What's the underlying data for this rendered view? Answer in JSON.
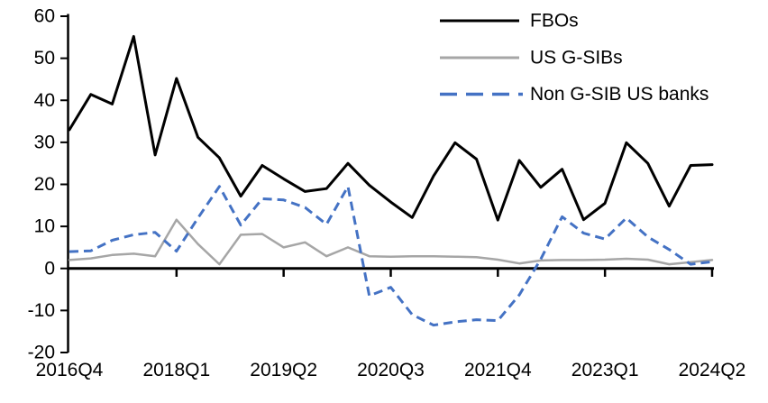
{
  "chart_data": {
    "type": "line",
    "title": "",
    "xlabel": "",
    "ylabel": "",
    "categories": [
      "2016Q4",
      "2017Q1",
      "2017Q2",
      "2017Q3",
      "2017Q4",
      "2018Q1",
      "2018Q2",
      "2018Q3",
      "2018Q4",
      "2019Q1",
      "2019Q2",
      "2019Q3",
      "2019Q4",
      "2020Q1",
      "2020Q2",
      "2020Q3",
      "2020Q4",
      "2021Q1",
      "2021Q2",
      "2021Q3",
      "2021Q4",
      "2022Q1",
      "2022Q2",
      "2022Q3",
      "2022Q4",
      "2023Q1",
      "2023Q2",
      "2023Q3",
      "2023Q4",
      "2024Q1",
      "2024Q2"
    ],
    "x_tick_labels": [
      "2016Q4",
      "2018Q1",
      "2019Q2",
      "2020Q3",
      "2021Q4",
      "2023Q1",
      "2024Q2"
    ],
    "x_tick_every": 5,
    "y_ticks": [
      60,
      50,
      40,
      30,
      20,
      10,
      0,
      -10,
      -20
    ],
    "ylim": [
      -20,
      60
    ],
    "grid": "off",
    "legend_position": "top-right",
    "series": [
      {
        "name": "FBOs",
        "color": "#000000",
        "style": "solid",
        "values": [
          33,
          41.4,
          39.1,
          55.2,
          27,
          45.2,
          31.2,
          26.3,
          17.2,
          24.5,
          21.3,
          18.3,
          19,
          25,
          19.8,
          15.8,
          12.1,
          22,
          29.9,
          26,
          11.5,
          25.7,
          19.3,
          23.6,
          11.6,
          15.5,
          29.9,
          25,
          14.8,
          24.5,
          24.7
        ]
      },
      {
        "name": "US G-SIBs",
        "color": "#A6A6A6",
        "style": "solid",
        "values": [
          2,
          2.4,
          3.2,
          3.5,
          2.9,
          11.6,
          5.8,
          1,
          8,
          8.2,
          5,
          6.2,
          2.9,
          5,
          2.9,
          2.8,
          2.9,
          2.9,
          2.8,
          2.7,
          2.1,
          1.2,
          1.9,
          2,
          2,
          2.1,
          2.3,
          2.1,
          1,
          1.5,
          2
        ]
      },
      {
        "name": "Non G-SIB US banks",
        "color": "#4472C4",
        "style": "dashed",
        "values": [
          4,
          4.2,
          6.7,
          8,
          8.6,
          4.1,
          12,
          19.5,
          10.3,
          16.6,
          16.3,
          14.5,
          10.5,
          19.5,
          -6.5,
          -4.5,
          -11,
          -13.5,
          -12.7,
          -12.2,
          -12.4,
          -6.3,
          2.2,
          12.3,
          8.4,
          7,
          12,
          7.5,
          4.5,
          1,
          1.6
        ]
      }
    ]
  }
}
